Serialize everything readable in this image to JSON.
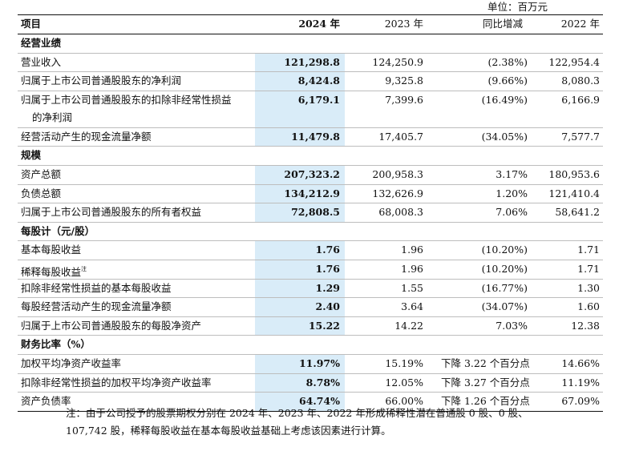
{
  "unit": "单位：百万元",
  "headers": {
    "item": "项目",
    "y2024": "2024 年",
    "y2023": "2023 年",
    "yoy": "同比增减",
    "y2022": "2022 年"
  },
  "sections": {
    "s1": "经营业绩",
    "s2": "规模",
    "s3": "每股计（元/股）",
    "s4": "财务比率（%）"
  },
  "rows": {
    "r1": {
      "label": "营业收入",
      "y2024": "121,298.8",
      "y2023": "124,250.9",
      "yoy": "(2.38%)",
      "y2022": "122,954.4"
    },
    "r2": {
      "label": "归属于上市公司普通股股东的净利润",
      "y2024": "8,424.8",
      "y2023": "9,325.8",
      "yoy": "(9.66%)",
      "y2022": "8,080.3"
    },
    "r3": {
      "label": "归属于上市公司普通股股东的扣除非经常性损益",
      "label2": "的净利润",
      "y2024": "6,179.1",
      "y2023": "7,399.6",
      "yoy": "(16.49%)",
      "y2022": "6,166.9"
    },
    "r4": {
      "label": "经营活动产生的现金流量净额",
      "y2024": "11,479.8",
      "y2023": "17,405.7",
      "yoy": "(34.05%)",
      "y2022": "7,577.7"
    },
    "r5": {
      "label": "资产总额",
      "y2024": "207,323.2",
      "y2023": "200,958.3",
      "yoy": "3.17%",
      "y2022": "180,953.6"
    },
    "r6": {
      "label": "负债总额",
      "y2024": "134,212.9",
      "y2023": "132,626.9",
      "yoy": "1.20%",
      "y2022": "121,410.4"
    },
    "r7": {
      "label": "归属于上市公司普通股股东的所有者权益",
      "y2024": "72,808.5",
      "y2023": "68,008.3",
      "yoy": "7.06%",
      "y2022": "58,641.2"
    },
    "r8": {
      "label": "基本每股收益",
      "y2024": "1.76",
      "y2023": "1.96",
      "yoy": "(10.20%)",
      "y2022": "1.71"
    },
    "r9": {
      "label": "稀释每股收益",
      "sup": "注",
      "y2024": "1.76",
      "y2023": "1.96",
      "yoy": "(10.20%)",
      "y2022": "1.71"
    },
    "r10": {
      "label": "扣除非经常性损益的基本每股收益",
      "y2024": "1.29",
      "y2023": "1.55",
      "yoy": "(16.77%)",
      "y2022": "1.30"
    },
    "r11": {
      "label": "每股经营活动产生的现金流量净额",
      "y2024": "2.40",
      "y2023": "3.64",
      "yoy": "(34.07%)",
      "y2022": "1.60"
    },
    "r12": {
      "label": "归属于上市公司普通股股东的每股净资产",
      "y2024": "15.22",
      "y2023": "14.22",
      "yoy": "7.03%",
      "y2022": "12.38"
    },
    "r13": {
      "label": "加权平均净资产收益率",
      "y2024": "11.97%",
      "y2023": "15.19%",
      "yoy": "下降 3.22 个百分点",
      "y2022": "14.66%"
    },
    "r14": {
      "label": "扣除非经常性损益的加权平均净资产收益率",
      "y2024": "8.78%",
      "y2023": "12.05%",
      "yoy": "下降 3.27 个百分点",
      "y2022": "11.19%"
    },
    "r15": {
      "label": "资产负债率",
      "y2024": "64.74%",
      "y2023": "66.00%",
      "yoy": "下降 1.26 个百分点",
      "y2022": "67.09%"
    }
  },
  "note": {
    "line1": "注：由于公司授予的股票期权分别在 2024 年、2023 年、2022 年形成稀释性潜在普通股 0 股、0 股、",
    "line2": "107,742 股，稀释每股收益在基本每股收益基础上考虑该因素进行计算。"
  }
}
